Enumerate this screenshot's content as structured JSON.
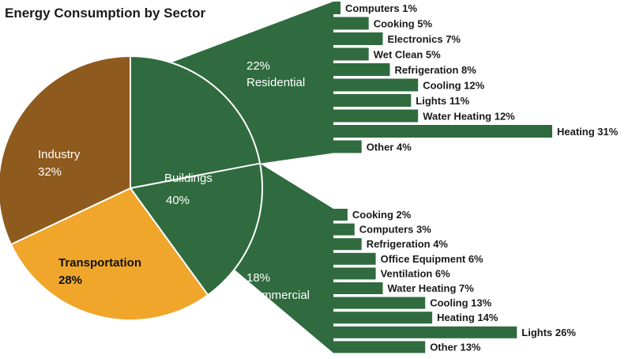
{
  "chart_data": {
    "type": "pie",
    "title": "Energy Consumption by Sector",
    "colors": {
      "industry": "#8e5a1e",
      "transportation": "#f0a62a",
      "buildings": "#2f6b3f",
      "bars": "#2f6b3f"
    },
    "sectors": [
      {
        "name": "Industry",
        "value_label": "32%",
        "value": 32
      },
      {
        "name": "Transportation",
        "value_label": "28%",
        "value": 28
      },
      {
        "name": "Buildings",
        "value_label": "40%",
        "value": 40
      }
    ],
    "subsectors": [
      {
        "name": "Residential",
        "value_label": "22%",
        "value": 22
      },
      {
        "name": "Commercial",
        "value_label": "18%",
        "value": 18
      }
    ],
    "residential_breakdown": {
      "labels": [
        "Computers 1%",
        "Cooking 5%",
        "Electronics 7%",
        "Wet Clean 5%",
        "Refrigeration 8%",
        "Cooling 12%",
        "Lights 11%",
        "Water Heating 12%",
        "Heating 31%",
        "Other 4%"
      ],
      "values": [
        1,
        5,
        7,
        5,
        8,
        12,
        11,
        12,
        31,
        4
      ]
    },
    "commercial_breakdown": {
      "labels": [
        "Cooking 2%",
        "Computers 3%",
        "Refrigeration 4%",
        "Office Equipment 6%",
        "Ventilation 6%",
        "Water Heating 7%",
        "Cooling 13%",
        "Heating 14%",
        "Lights 26%",
        "Other 13%"
      ],
      "values": [
        2,
        3,
        4,
        6,
        6,
        7,
        13,
        14,
        26,
        13
      ]
    }
  }
}
